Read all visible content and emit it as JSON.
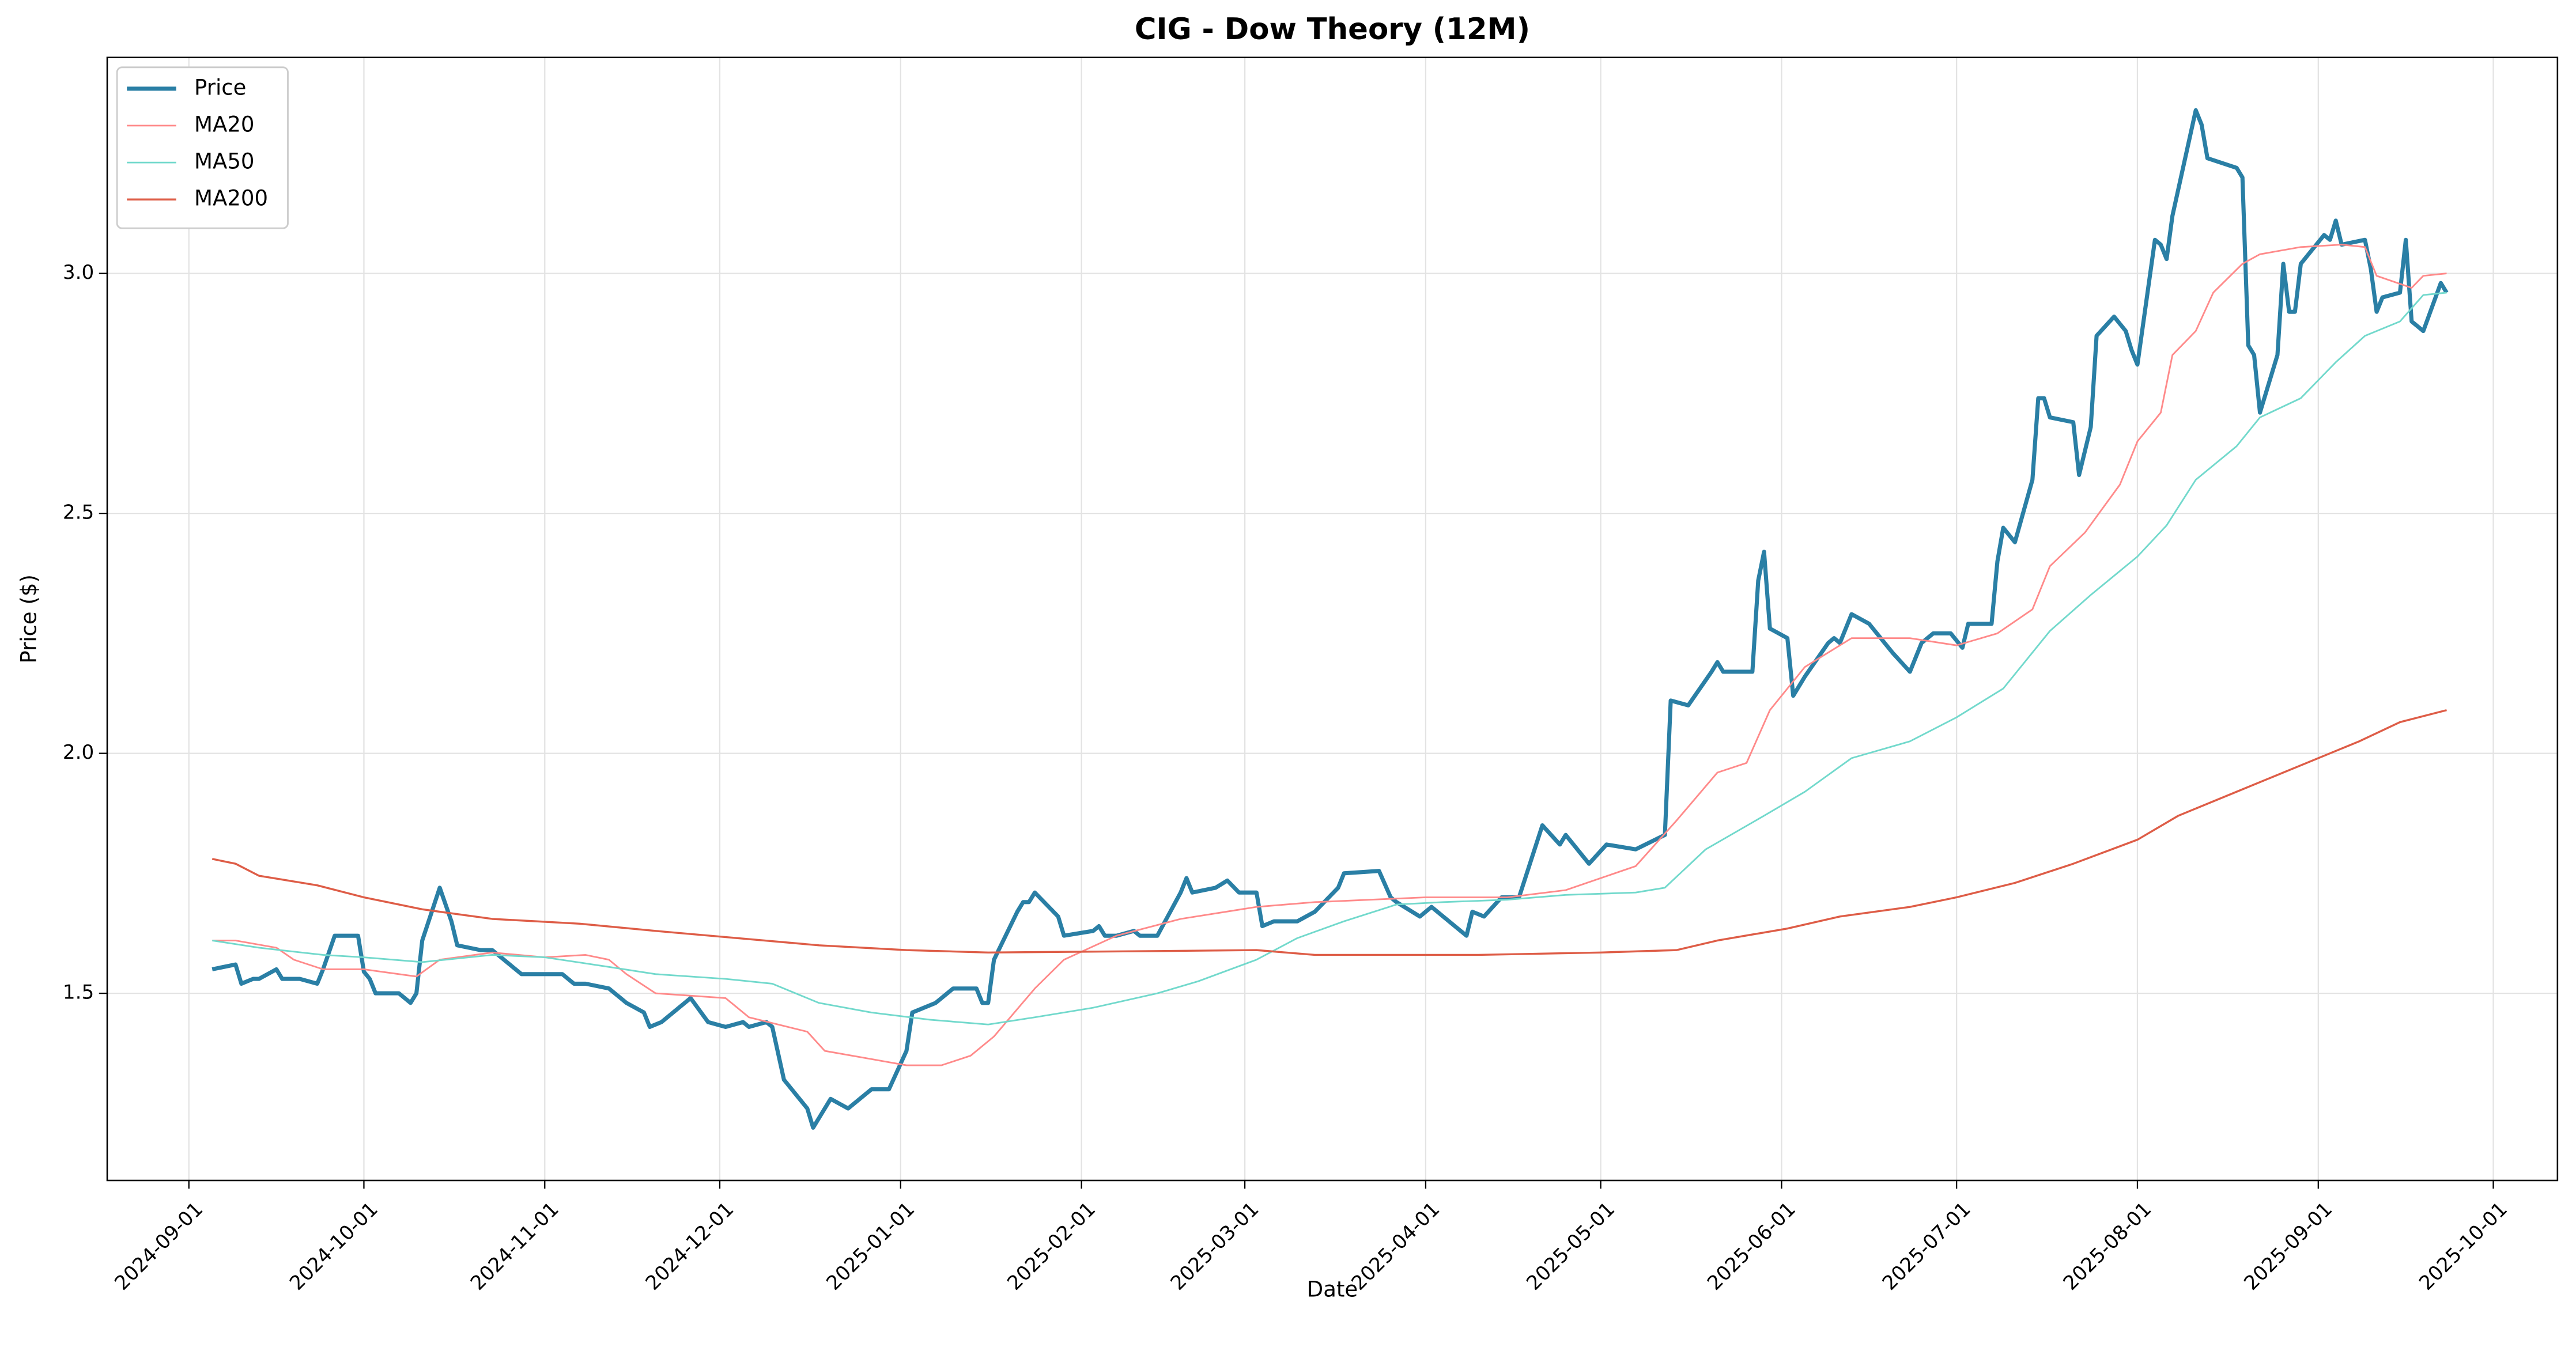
{
  "chart_data": {
    "type": "line",
    "title": "CIG - Dow Theory (12M)",
    "x_label": "Date",
    "y_label": "Price ($)",
    "xlim": [
      "2024-08-18",
      "2025-10-12"
    ],
    "xticks": [
      "2024-09-01",
      "2024-10-01",
      "2024-11-01",
      "2024-12-01",
      "2025-01-01",
      "2025-02-01",
      "2025-03-01",
      "2025-04-01",
      "2025-05-01",
      "2025-06-01",
      "2025-07-01",
      "2025-08-01",
      "2025-09-01",
      "2025-10-01"
    ],
    "ylim": [
      1.11,
      3.45
    ],
    "yticks": [
      {
        "value": 1.5,
        "label": "1.5"
      },
      {
        "value": 2,
        "label": "2.0"
      },
      {
        "value": 2.5,
        "label": "2.5"
      },
      {
        "value": 3,
        "label": "3.0"
      }
    ],
    "grid": true,
    "legend": "upper left",
    "series": [
      {
        "name": "Price",
        "color": "#2a7fa5",
        "x": [
          "2024-09-05",
          "2024-09-09",
          "2024-09-10",
          "2024-09-12",
          "2024-09-13",
          "2024-09-16",
          "2024-09-17",
          "2024-09-20",
          "2024-09-23",
          "2024-09-24",
          "2024-09-26",
          "2024-09-30",
          "2024-10-01",
          "2024-10-02",
          "2024-10-03",
          "2024-10-07",
          "2024-10-09",
          "2024-10-10",
          "2024-10-11",
          "2024-10-14",
          "2024-10-16",
          "2024-10-17",
          "2024-10-21",
          "2024-10-23",
          "2024-10-25",
          "2024-10-28",
          "2024-11-01",
          "2024-11-04",
          "2024-11-06",
          "2024-11-08",
          "2024-11-12",
          "2024-11-14",
          "2024-11-15",
          "2024-11-18",
          "2024-11-19",
          "2024-11-21",
          "2024-11-26",
          "2024-11-29",
          "2024-12-02",
          "2024-12-05",
          "2024-12-06",
          "2024-12-09",
          "2024-12-10",
          "2024-12-12",
          "2024-12-16",
          "2024-12-17",
          "2024-12-18",
          "2024-12-20",
          "2024-12-23",
          "2024-12-27",
          "2024-12-30",
          "2025-01-02",
          "2025-01-03",
          "2025-01-07",
          "2025-01-10",
          "2025-01-14",
          "2025-01-15",
          "2025-01-16",
          "2025-01-17",
          "2025-01-21",
          "2025-01-22",
          "2025-01-23",
          "2025-01-24",
          "2025-01-28",
          "2025-01-29",
          "2025-02-03",
          "2025-02-04",
          "2025-02-05",
          "2025-02-07",
          "2025-02-10",
          "2025-02-11",
          "2025-02-14",
          "2025-02-18",
          "2025-02-19",
          "2025-02-20",
          "2025-02-24",
          "2025-02-26",
          "2025-02-28",
          "2025-03-03",
          "2025-03-04",
          "2025-03-06",
          "2025-03-10",
          "2025-03-13",
          "2025-03-17",
          "2025-03-18",
          "2025-03-24",
          "2025-03-26",
          "2025-03-27",
          "2025-03-31",
          "2025-04-02",
          "2025-04-07",
          "2025-04-08",
          "2025-04-09",
          "2025-04-11",
          "2025-04-14",
          "2025-04-17",
          "2025-04-21",
          "2025-04-24",
          "2025-04-25",
          "2025-04-29",
          "2025-05-02",
          "2025-05-07",
          "2025-05-12",
          "2025-05-13",
          "2025-05-16",
          "2025-05-20",
          "2025-05-21",
          "2025-05-22",
          "2025-05-27",
          "2025-05-28",
          "2025-05-29",
          "2025-05-30",
          "2025-06-02",
          "2025-06-03",
          "2025-06-05",
          "2025-06-09",
          "2025-06-10",
          "2025-06-11",
          "2025-06-13",
          "2025-06-16",
          "2025-06-20",
          "2025-06-23",
          "2025-06-25",
          "2025-06-27",
          "2025-06-30",
          "2025-07-02",
          "2025-07-03",
          "2025-07-07",
          "2025-07-08",
          "2025-07-09",
          "2025-07-11",
          "2025-07-14",
          "2025-07-15",
          "2025-07-16",
          "2025-07-17",
          "2025-07-21",
          "2025-07-22",
          "2025-07-24",
          "2025-07-25",
          "2025-07-28",
          "2025-07-30",
          "2025-07-31",
          "2025-08-01",
          "2025-08-04",
          "2025-08-05",
          "2025-08-06",
          "2025-08-07",
          "2025-08-11",
          "2025-08-12",
          "2025-08-13",
          "2025-08-18",
          "2025-08-19",
          "2025-08-20",
          "2025-08-21",
          "2025-08-22",
          "2025-08-25",
          "2025-08-26",
          "2025-08-27",
          "2025-08-28",
          "2025-08-29",
          "2025-09-02",
          "2025-09-03",
          "2025-09-04",
          "2025-09-05",
          "2025-09-09",
          "2025-09-10",
          "2025-09-11",
          "2025-09-12",
          "2025-09-15",
          "2025-09-16",
          "2025-09-17",
          "2025-09-19",
          "2025-09-22",
          "2025-09-23"
        ],
        "values": [
          1.55,
          1.56,
          1.52,
          1.53,
          1.53,
          1.55,
          1.53,
          1.53,
          1.52,
          1.55,
          1.62,
          1.62,
          1.545,
          1.53,
          1.5,
          1.5,
          1.48,
          1.5,
          1.61,
          1.72,
          1.65,
          1.6,
          1.59,
          1.59,
          1.57,
          1.54,
          1.54,
          1.54,
          1.52,
          1.52,
          1.51,
          1.49,
          1.48,
          1.46,
          1.43,
          1.44,
          1.49,
          1.44,
          1.43,
          1.44,
          1.43,
          1.44,
          1.43,
          1.32,
          1.26,
          1.22,
          1.24,
          1.28,
          1.26,
          1.3,
          1.3,
          1.38,
          1.46,
          1.48,
          1.51,
          1.51,
          1.48,
          1.48,
          1.57,
          1.67,
          1.69,
          1.69,
          1.71,
          1.66,
          1.62,
          1.63,
          1.64,
          1.62,
          1.62,
          1.63,
          1.62,
          1.62,
          1.71,
          1.74,
          1.71,
          1.72,
          1.735,
          1.71,
          1.71,
          1.64,
          1.65,
          1.65,
          1.67,
          1.72,
          1.75,
          1.755,
          1.7,
          1.69,
          1.66,
          1.68,
          1.63,
          1.62,
          1.67,
          1.66,
          1.7,
          1.7,
          1.85,
          1.81,
          1.83,
          1.77,
          1.81,
          1.8,
          1.83,
          2.11,
          2.1,
          2.17,
          2.19,
          2.17,
          2.17,
          2.36,
          2.42,
          2.26,
          2.24,
          2.12,
          2.16,
          2.23,
          2.24,
          2.23,
          2.29,
          2.27,
          2.21,
          2.17,
          2.23,
          2.25,
          2.25,
          2.22,
          2.27,
          2.27,
          2.4,
          2.47,
          2.44,
          2.57,
          2.74,
          2.74,
          2.7,
          2.69,
          2.58,
          2.68,
          2.87,
          2.91,
          2.88,
          2.84,
          2.81,
          3.07,
          3.06,
          3.03,
          3.12,
          3.34,
          3.31,
          3.24,
          3.22,
          3.2,
          2.85,
          2.83,
          2.71,
          2.83,
          3.02,
          2.92,
          2.92,
          3.02,
          3.08,
          3.07,
          3.11,
          3.06,
          3.07,
          3.01,
          2.92,
          2.95,
          2.96,
          3.07,
          2.9,
          2.88,
          2.98,
          2.96
        ]
      },
      {
        "name": "MA20",
        "color": "#ff8a8a",
        "x": [
          "2024-09-05",
          "2024-09-09",
          "2024-09-16",
          "2024-09-19",
          "2024-09-24",
          "2024-10-01",
          "2024-10-07",
          "2024-10-10",
          "2024-10-14",
          "2024-10-23",
          "2024-11-01",
          "2024-11-08",
          "2024-11-12",
          "2024-11-15",
          "2024-11-20",
          "2024-12-02",
          "2024-12-06",
          "2024-12-16",
          "2024-12-19",
          "2025-01-02",
          "2025-01-08",
          "2025-01-13",
          "2025-01-17",
          "2025-01-24",
          "2025-01-29",
          "2025-02-07",
          "2025-02-18",
          "2025-03-03",
          "2025-03-13",
          "2025-04-01",
          "2025-04-15",
          "2025-04-25",
          "2025-05-07",
          "2025-05-14",
          "2025-05-21",
          "2025-05-26",
          "2025-05-30",
          "2025-06-05",
          "2025-06-13",
          "2025-06-23",
          "2025-07-01",
          "2025-07-08",
          "2025-07-14",
          "2025-07-17",
          "2025-07-23",
          "2025-07-29",
          "2025-08-01",
          "2025-08-05",
          "2025-08-07",
          "2025-08-11",
          "2025-08-14",
          "2025-08-19",
          "2025-08-22",
          "2025-08-29",
          "2025-09-05",
          "2025-09-09",
          "2025-09-11",
          "2025-09-17",
          "2025-09-19",
          "2025-09-23"
        ],
        "values": [
          1.61,
          1.61,
          1.595,
          1.57,
          1.55,
          1.55,
          1.54,
          1.535,
          1.57,
          1.585,
          1.575,
          1.58,
          1.57,
          1.54,
          1.5,
          1.49,
          1.45,
          1.42,
          1.38,
          1.35,
          1.35,
          1.37,
          1.41,
          1.51,
          1.57,
          1.62,
          1.655,
          1.68,
          1.69,
          1.7,
          1.7,
          1.715,
          1.765,
          1.86,
          1.96,
          1.98,
          2.09,
          2.18,
          2.24,
          2.24,
          2.225,
          2.25,
          2.3,
          2.39,
          2.46,
          2.56,
          2.65,
          2.71,
          2.83,
          2.88,
          2.96,
          3.02,
          3.04,
          3.055,
          3.06,
          3.055,
          2.995,
          2.97,
          2.995,
          3.0
        ]
      },
      {
        "name": "MA50",
        "color": "#72d9cc",
        "x": [
          "2024-09-05",
          "2024-09-13",
          "2024-09-24",
          "2024-10-01",
          "2024-10-11",
          "2024-10-23",
          "2024-11-01",
          "2024-11-12",
          "2024-11-20",
          "2024-12-02",
          "2024-12-10",
          "2024-12-18",
          "2024-12-27",
          "2025-01-06",
          "2025-01-16",
          "2025-01-24",
          "2025-02-03",
          "2025-02-14",
          "2025-02-21",
          "2025-03-03",
          "2025-03-10",
          "2025-03-18",
          "2025-03-27",
          "2025-04-04",
          "2025-04-15",
          "2025-04-25",
          "2025-05-07",
          "2025-05-12",
          "2025-05-19",
          "2025-05-29",
          "2025-06-05",
          "2025-06-13",
          "2025-06-23",
          "2025-07-01",
          "2025-07-09",
          "2025-07-17",
          "2025-07-24",
          "2025-08-01",
          "2025-08-06",
          "2025-08-11",
          "2025-08-18",
          "2025-08-22",
          "2025-08-29",
          "2025-09-04",
          "2025-09-09",
          "2025-09-15",
          "2025-09-19",
          "2025-09-23"
        ],
        "values": [
          1.61,
          1.595,
          1.58,
          1.575,
          1.565,
          1.58,
          1.575,
          1.555,
          1.54,
          1.53,
          1.52,
          1.48,
          1.46,
          1.445,
          1.435,
          1.45,
          1.47,
          1.5,
          1.525,
          1.57,
          1.615,
          1.65,
          1.685,
          1.69,
          1.695,
          1.705,
          1.71,
          1.72,
          1.8,
          1.87,
          1.92,
          1.99,
          2.025,
          2.075,
          2.135,
          2.255,
          2.33,
          2.41,
          2.475,
          2.57,
          2.64,
          2.7,
          2.74,
          2.815,
          2.87,
          2.9,
          2.955,
          2.96
        ]
      },
      {
        "name": "MA200",
        "color": "#de5d47",
        "x": [
          "2024-09-05",
          "2024-09-09",
          "2024-09-13",
          "2024-09-23",
          "2024-10-01",
          "2024-10-11",
          "2024-10-23",
          "2024-11-07",
          "2024-11-20",
          "2024-12-04",
          "2024-12-18",
          "2025-01-02",
          "2025-01-16",
          "2025-02-14",
          "2025-03-03",
          "2025-03-13",
          "2025-04-10",
          "2025-05-01",
          "2025-05-14",
          "2025-05-21",
          "2025-06-02",
          "2025-06-11",
          "2025-06-23",
          "2025-07-01",
          "2025-07-11",
          "2025-07-21",
          "2025-08-01",
          "2025-08-08",
          "2025-08-18",
          "2025-08-29",
          "2025-09-08",
          "2025-09-15",
          "2025-09-23"
        ],
        "values": [
          1.78,
          1.77,
          1.745,
          1.725,
          1.7,
          1.675,
          1.655,
          1.645,
          1.63,
          1.615,
          1.6,
          1.59,
          1.585,
          1.588,
          1.59,
          1.58,
          1.58,
          1.585,
          1.59,
          1.61,
          1.635,
          1.66,
          1.68,
          1.7,
          1.73,
          1.77,
          1.82,
          1.87,
          1.92,
          1.975,
          2.025,
          2.065,
          2.09
        ]
      }
    ]
  }
}
